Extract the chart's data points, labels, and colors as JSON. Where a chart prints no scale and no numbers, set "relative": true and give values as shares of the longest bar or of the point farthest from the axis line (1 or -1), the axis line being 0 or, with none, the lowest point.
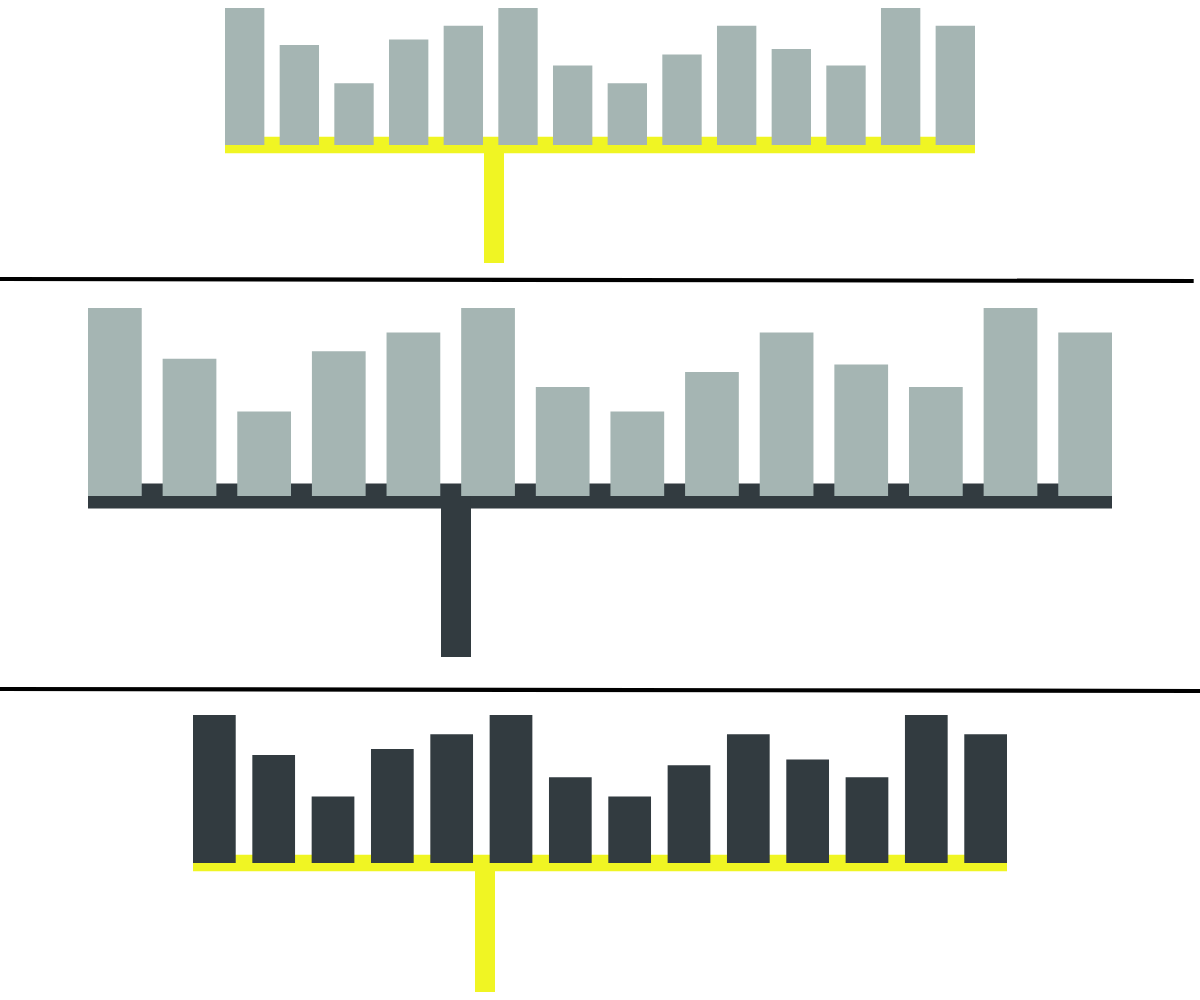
{
  "chart_data": [
    {
      "type": "bar",
      "relative": true,
      "categories": [
        null,
        null,
        null,
        null,
        null,
        null,
        null,
        null,
        null,
        null,
        null,
        null,
        null,
        null
      ],
      "values": [
        1,
        0.73,
        0.45,
        0.77,
        0.87,
        1,
        0.58,
        0.45,
        0.66,
        0.87,
        0.7,
        0.58,
        1,
        0.87
      ],
      "color": "#a5b5b3",
      "grid": false
    },
    {
      "type": "bar",
      "relative": true,
      "categories": [
        null,
        null,
        null,
        null,
        null,
        null,
        null,
        null,
        null,
        null,
        null,
        null,
        null,
        null
      ],
      "values": [
        1,
        0.73,
        0.45,
        0.77,
        0.87,
        1,
        0.58,
        0.45,
        0.66,
        0.87,
        0.7,
        0.58,
        1,
        0.87
      ],
      "color": "#a5b5b3",
      "grid": false
    },
    {
      "type": "bar",
      "relative": true,
      "categories": [
        null,
        null,
        null,
        null,
        null,
        null,
        null,
        null,
        null,
        null,
        null,
        null,
        null,
        null
      ],
      "values": [
        1,
        0.73,
        0.45,
        0.77,
        0.87,
        1,
        0.58,
        0.45,
        0.66,
        0.87,
        0.7,
        0.58,
        1,
        0.87
      ],
      "color": "#323b40",
      "grid": false
    }
  ]
}
